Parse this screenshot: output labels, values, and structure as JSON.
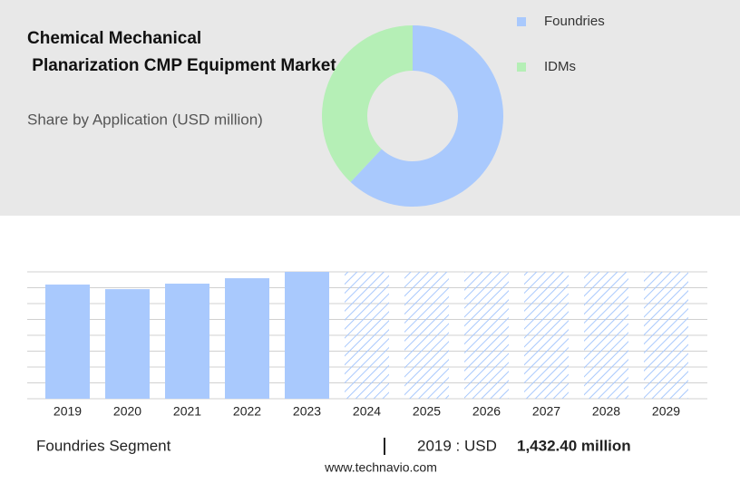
{
  "chart_data": [
    {
      "type": "pie",
      "title": "Chemical Mechanical Planarization CMP Equipment Market",
      "subtitle": "Share by Application (USD million)",
      "donut": true,
      "categories": [
        "Foundries",
        "IDMs"
      ],
      "values": [
        62,
        38
      ],
      "colors": [
        "#a9c9fd",
        "#b5efb6"
      ]
    },
    {
      "type": "bar",
      "categories": [
        "2019",
        "2020",
        "2021",
        "2022",
        "2023",
        "2024",
        "2025",
        "2026",
        "2027",
        "2028",
        "2029"
      ],
      "values": [
        1432.4,
        1375,
        1444,
        1512,
        1592,
        null,
        null,
        null,
        null,
        null,
        null
      ],
      "color": "#a9c9fd",
      "ylim": [
        0,
        1592
      ],
      "yticks": [
        0,
        199,
        398,
        597,
        796,
        995,
        1194,
        1393,
        1592
      ],
      "grid": true,
      "segment": "Foundries Segment",
      "highlight_label": "2019 : USD",
      "highlight_value": "1,432.40 million",
      "source": "www.technavio.com"
    }
  ]
}
